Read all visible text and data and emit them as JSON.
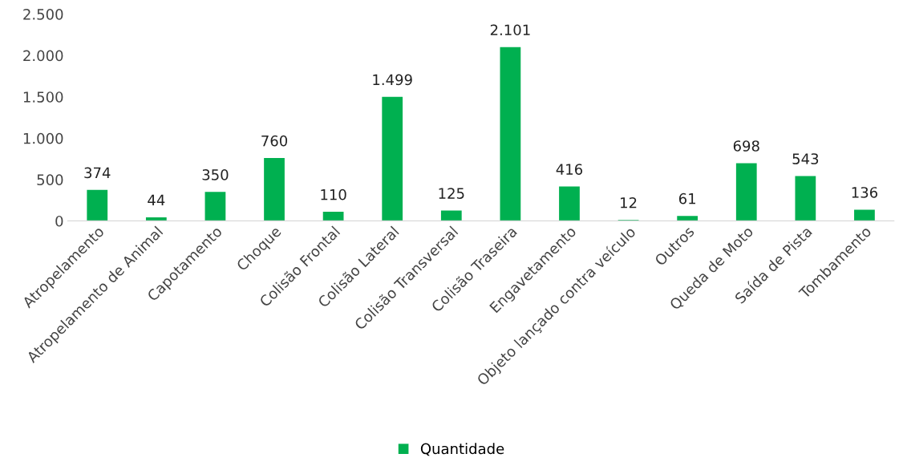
{
  "chart_data": {
    "type": "bar",
    "categories": [
      "Atropelamento",
      "Atropelamento de Animal",
      "Capotamento",
      "Choque",
      "Colisão Frontal",
      "Colisão Lateral",
      "Colisão Transversal",
      "Colisão Traseira",
      "Engavetamento",
      "Objeto lançado contra veículo",
      "Outros",
      "Queda de Moto",
      "Saída de Pista",
      "Tombamento"
    ],
    "series": [
      {
        "name": "Quantidade",
        "color": "#00b050",
        "values": [
          374,
          44,
          350,
          760,
          110,
          1499,
          125,
          2101,
          416,
          12,
          61,
          698,
          543,
          136
        ],
        "value_labels": [
          "374",
          "44",
          "350",
          "760",
          "110",
          "1.499",
          "125",
          "2.101",
          "416",
          "12",
          "61",
          "698",
          "543",
          "136"
        ]
      }
    ],
    "ylim": [
      0,
      2500
    ],
    "yticks": [
      0,
      500,
      {
        "value": 1000,
        "label": "1.000"
      },
      {
        "value": 1500,
        "label": "1.500"
      },
      {
        "value": 2000,
        "label": "2.000"
      },
      {
        "value": 2500,
        "label": "2.500"
      }
    ],
    "grid": false,
    "legend": "bottom"
  }
}
